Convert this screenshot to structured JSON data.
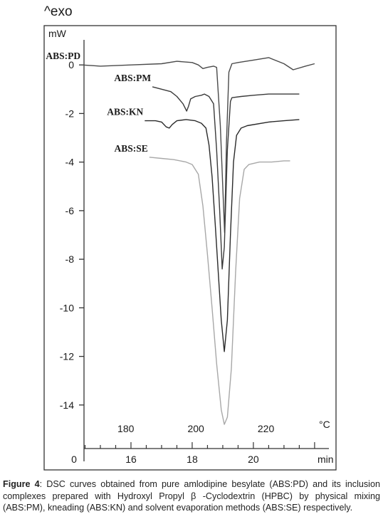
{
  "chart_data": {
    "type": "line",
    "y_unit_corner": "^exo",
    "ylabel": "mW",
    "ylim": [
      -15.5,
      1.5
    ],
    "y_ticks": [
      0,
      -2,
      -4,
      -6,
      -8,
      -10,
      -12,
      -14
    ],
    "x_time": {
      "label": "min",
      "range": [
        14,
        22.7
      ],
      "ticks": [
        16,
        18,
        20
      ],
      "first_tick_label": "0"
    },
    "x_temp": {
      "label": "°C",
      "range": [
        164,
        240
      ],
      "ticks": [
        180,
        200,
        220
      ]
    },
    "grid": false,
    "series": [
      {
        "name": "ABS:PD",
        "color": "#4a4a4a",
        "points": [
          [
            14.4,
            0.0
          ],
          [
            15.0,
            -0.05
          ],
          [
            16.0,
            0.0
          ],
          [
            17.0,
            0.05
          ],
          [
            17.5,
            0.15
          ],
          [
            18.0,
            0.1
          ],
          [
            18.2,
            0.0
          ],
          [
            18.35,
            -0.15
          ],
          [
            18.5,
            -0.1
          ],
          [
            18.7,
            -0.05
          ],
          [
            18.8,
            -0.1
          ],
          [
            18.92,
            -2.5
          ],
          [
            19.0,
            -5.0
          ],
          [
            19.06,
            -6.9
          ],
          [
            19.12,
            -3.2
          ],
          [
            19.2,
            -0.3
          ],
          [
            19.3,
            0.05
          ],
          [
            19.5,
            0.1
          ],
          [
            20.0,
            0.2
          ],
          [
            20.5,
            0.3
          ],
          [
            21.0,
            0.05
          ],
          [
            21.3,
            -0.2
          ],
          [
            21.7,
            -0.05
          ],
          [
            22.0,
            0.05
          ]
        ]
      },
      {
        "name": "ABS:PM",
        "color": "#3a3a3a",
        "points": [
          [
            16.7,
            -0.9
          ],
          [
            17.0,
            -1.0
          ],
          [
            17.3,
            -1.1
          ],
          [
            17.5,
            -1.3
          ],
          [
            17.7,
            -1.6
          ],
          [
            17.82,
            -1.9
          ],
          [
            17.88,
            -1.7
          ],
          [
            17.95,
            -1.4
          ],
          [
            18.1,
            -1.3
          ],
          [
            18.3,
            -1.25
          ],
          [
            18.4,
            -1.2
          ],
          [
            18.55,
            -1.3
          ],
          [
            18.7,
            -1.6
          ],
          [
            18.8,
            -3.5
          ],
          [
            18.9,
            -6.0
          ],
          [
            18.98,
            -8.4
          ],
          [
            19.05,
            -7.5
          ],
          [
            19.15,
            -3.5
          ],
          [
            19.25,
            -1.5
          ],
          [
            19.3,
            -1.35
          ],
          [
            19.6,
            -1.3
          ],
          [
            20.0,
            -1.25
          ],
          [
            20.5,
            -1.2
          ],
          [
            21.0,
            -1.2
          ],
          [
            21.5,
            -1.2
          ]
        ]
      },
      {
        "name": "ABS:KN",
        "color": "#2a2a2a",
        "points": [
          [
            16.45,
            -2.3
          ],
          [
            16.8,
            -2.3
          ],
          [
            17.0,
            -2.35
          ],
          [
            17.15,
            -2.55
          ],
          [
            17.25,
            -2.6
          ],
          [
            17.35,
            -2.45
          ],
          [
            17.5,
            -2.3
          ],
          [
            17.8,
            -2.25
          ],
          [
            18.1,
            -2.3
          ],
          [
            18.3,
            -2.4
          ],
          [
            18.45,
            -2.6
          ],
          [
            18.55,
            -3.3
          ],
          [
            18.65,
            -4.6
          ],
          [
            18.75,
            -6.5
          ],
          [
            18.85,
            -8.5
          ],
          [
            18.95,
            -10.5
          ],
          [
            19.05,
            -11.8
          ],
          [
            19.15,
            -10.5
          ],
          [
            19.25,
            -7.0
          ],
          [
            19.35,
            -4.0
          ],
          [
            19.45,
            -2.9
          ],
          [
            19.6,
            -2.6
          ],
          [
            19.8,
            -2.5
          ],
          [
            20.5,
            -2.35
          ],
          [
            21.0,
            -2.3
          ],
          [
            21.5,
            -2.25
          ]
        ]
      },
      {
        "name": "ABS:SE",
        "color": "#a8a8a8",
        "points": [
          [
            16.6,
            -3.8
          ],
          [
            17.0,
            -3.85
          ],
          [
            17.4,
            -3.9
          ],
          [
            17.8,
            -4.0
          ],
          [
            18.0,
            -4.1
          ],
          [
            18.2,
            -4.5
          ],
          [
            18.35,
            -5.8
          ],
          [
            18.5,
            -7.8
          ],
          [
            18.65,
            -10.0
          ],
          [
            18.8,
            -12.3
          ],
          [
            18.95,
            -14.2
          ],
          [
            19.05,
            -14.8
          ],
          [
            19.15,
            -14.5
          ],
          [
            19.28,
            -12.5
          ],
          [
            19.42,
            -8.5
          ],
          [
            19.55,
            -5.5
          ],
          [
            19.7,
            -4.3
          ],
          [
            19.85,
            -4.1
          ],
          [
            20.2,
            -4.0
          ],
          [
            20.6,
            -4.0
          ],
          [
            21.0,
            -3.95
          ],
          [
            21.2,
            -3.95
          ]
        ]
      }
    ],
    "annotations": [
      {
        "text": "ABS:PD",
        "series": "ABS:PD"
      },
      {
        "text": "ABS:PM",
        "series": "ABS:PM"
      },
      {
        "text": "ABS:KN",
        "series": "ABS:KN"
      },
      {
        "text": "ABS:SE",
        "series": "ABS:SE"
      }
    ]
  },
  "caption": {
    "label": "Figure 4",
    "text": ": DSC curves obtained from pure amlodipine besylate (ABS:PD) and its inclusion complexes prepared with  Hydroxyl Propyl β -Cyclodextrin (HPBC) by physical mixing (ABS:PM), kneading (ABS:KN) and solvent evaporation methods (ABS:SE) respectively."
  }
}
